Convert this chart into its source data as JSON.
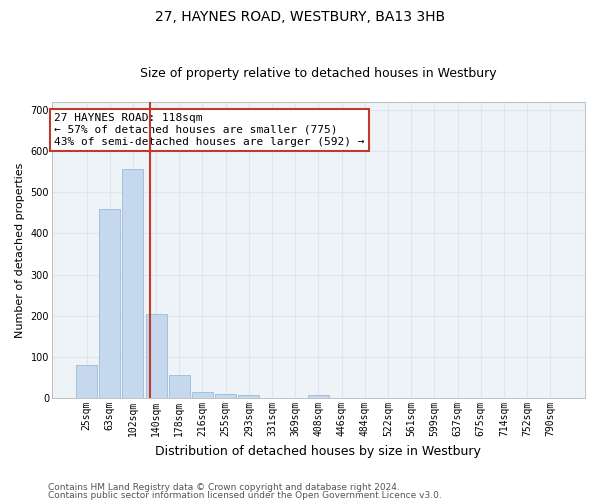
{
  "title1": "27, HAYNES ROAD, WESTBURY, BA13 3HB",
  "title2": "Size of property relative to detached houses in Westbury",
  "xlabel": "Distribution of detached houses by size in Westbury",
  "ylabel": "Number of detached properties",
  "categories": [
    "25sqm",
    "63sqm",
    "102sqm",
    "140sqm",
    "178sqm",
    "216sqm",
    "255sqm",
    "293sqm",
    "331sqm",
    "369sqm",
    "408sqm",
    "446sqm",
    "484sqm",
    "522sqm",
    "561sqm",
    "599sqm",
    "637sqm",
    "675sqm",
    "714sqm",
    "752sqm",
    "790sqm"
  ],
  "values": [
    80,
    460,
    555,
    205,
    55,
    15,
    10,
    7,
    0,
    0,
    7,
    0,
    0,
    0,
    0,
    0,
    0,
    0,
    0,
    0,
    0
  ],
  "bar_color": "#c5d8ed",
  "bar_edgecolor": "#8ab4d4",
  "vline_x": 2.73,
  "vline_color": "#c0392b",
  "annotation_text": "27 HAYNES ROAD: 118sqm\n← 57% of detached houses are smaller (775)\n43% of semi-detached houses are larger (592) →",
  "annotation_box_color": "#c0392b",
  "ylim": [
    0,
    720
  ],
  "yticks": [
    0,
    100,
    200,
    300,
    400,
    500,
    600,
    700
  ],
  "grid_color": "#dde6f0",
  "bg_color": "#eef3f8",
  "footer1": "Contains HM Land Registry data © Crown copyright and database right 2024.",
  "footer2": "Contains public sector information licensed under the Open Government Licence v3.0.",
  "title1_fontsize": 10,
  "title2_fontsize": 9,
  "xlabel_fontsize": 9,
  "ylabel_fontsize": 8,
  "tick_fontsize": 7,
  "footer_fontsize": 6.5,
  "annotation_fontsize": 8
}
